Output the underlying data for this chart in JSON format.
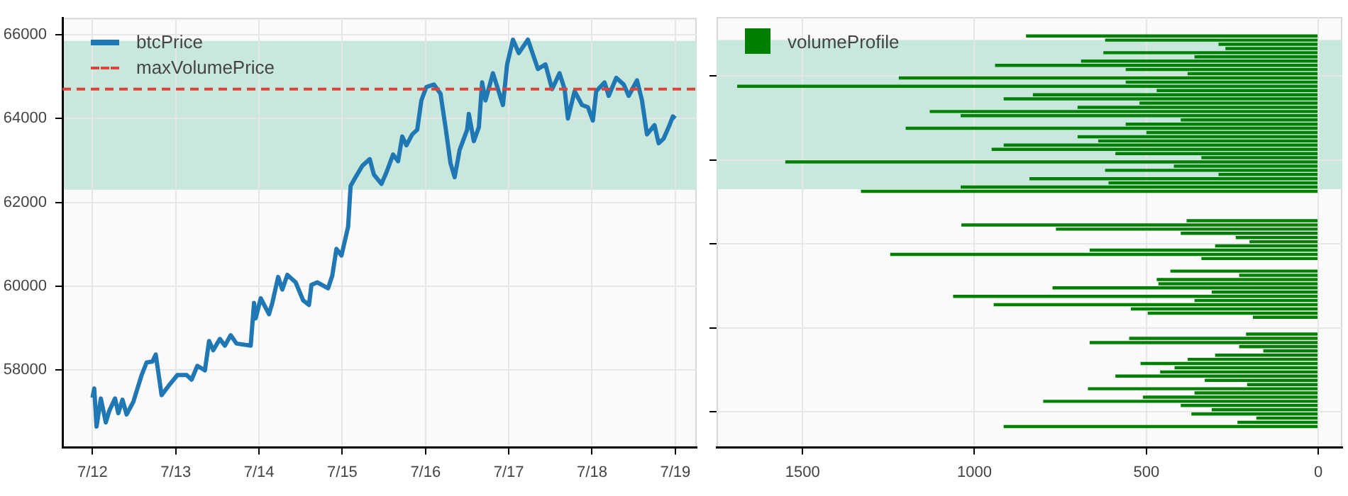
{
  "chart_data": [
    {
      "type": "line",
      "legend": "top left",
      "grid": true,
      "xlim": [
        "--07-11T15:20",
        "--07-19T06:10"
      ],
      "xticks": [
        {
          "value": "--07-12",
          "label": "7/12"
        },
        {
          "value": "--07-13",
          "label": "7/13"
        },
        {
          "value": "--07-14",
          "label": "7/14"
        },
        {
          "value": "--07-15",
          "label": "7/15"
        },
        {
          "value": "--07-16",
          "label": "7/16"
        },
        {
          "value": "--07-17",
          "label": "7/17"
        },
        {
          "value": "--07-18",
          "label": "7/18"
        },
        {
          "value": "--07-19",
          "label": "7/19"
        }
      ],
      "ylim": [
        56150,
        66400
      ],
      "yticks": [
        58000,
        60000,
        62000,
        64000,
        66000
      ],
      "bands": [
        {
          "axis": "y",
          "from": 62300,
          "to": 65850,
          "color": "#c8e8dd"
        }
      ],
      "ref_lines": [
        {
          "axis": "y",
          "value": 64700,
          "label": "maxVolumePrice",
          "color": "#d9453b",
          "line_style": "dashed"
        }
      ],
      "x": [
        "--07-12T00:00",
        "--07-12T00:30",
        "--07-12T01:10",
        "--07-12T02:24",
        "--07-12T03:50",
        "--07-12T04:48",
        "--07-12T06:30",
        "--07-12T07:26",
        "--07-12T08:38",
        "--07-12T09:50",
        "--07-12T11:46",
        "--07-12T12:58",
        "--07-12T14:10",
        "--07-12T15:36",
        "--07-12T17:17",
        "--07-12T18:14",
        "--07-12T19:55",
        "--07-12T21:50",
        "--07-13T00:29",
        "--07-13T03:07",
        "--07-13T04:34",
        "--07-13T06:14",
        "--07-13T08:24",
        "--07-13T09:36",
        "--07-13T10:48",
        "--07-13T12:43",
        "--07-13T14:10",
        "--07-13T15:50",
        "--07-13T17:31",
        "--07-13T21:36",
        "--07-13T22:34",
        "--07-13T23:02",
        "--07-14T00:29",
        "--07-14T02:53",
        "--07-14T03:50",
        "--07-14T05:31",
        "--07-14T06:43",
        "--07-14T08:10",
        "--07-14T10:34",
        "--07-14T12:43",
        "--07-14T14:24",
        "--07-14T15:07",
        "--07-14T16:48",
        "--07-14T19:55",
        "--07-14T21:07",
        "--07-14T22:19",
        "--07-14T23:46",
        "--07-15T01:41",
        "--07-15T02:24",
        "--07-15T03:50",
        "--07-15T05:46",
        "--07-15T07:55",
        "--07-15T09:07",
        "--07-15T11:17",
        "--07-15T12:43",
        "--07-15T14:38",
        "--07-15T16:05",
        "--07-15T17:17",
        "--07-15T18:29",
        "--07-15T20:10",
        "--07-15T21:36",
        "--07-15T22:48",
        "--07-16T00:14",
        "--07-16T02:24",
        "--07-16T04:19",
        "--07-16T05:46",
        "--07-16T07:12",
        "--07-16T08:24",
        "--07-16T09:50",
        "--07-16T12:00",
        "--07-16T12:29",
        "--07-16T13:55",
        "--07-16T15:22",
        "--07-16T16:19",
        "--07-16T17:17",
        "--07-16T19:26",
        "--07-16T20:53",
        "--07-16T22:19",
        "--07-16T23:31",
        "--07-17T01:12",
        "--07-17T02:53",
        "--07-17T05:31",
        "--07-17T08:24",
        "--07-17T10:34",
        "--07-17T12:29",
        "--07-17T14:38",
        "--07-17T16:05",
        "--07-17T17:02",
        "--07-17T18:58",
        "--07-17T21:07",
        "--07-17T22:48",
        "--07-18T00:14",
        "--07-18T01:12",
        "--07-18T03:36",
        "--07-18T04:48",
        "--07-18T06:58",
        "--07-18T09:07",
        "--07-18T10:34",
        "--07-18T12:58",
        "--07-18T14:24",
        "--07-18T15:50",
        "--07-18T18:00",
        "--07-18T19:12",
        "--07-18T20:38",
        "--07-18T22:19",
        "--07-18T23:17",
        "--07-19T00:00"
      ],
      "series": [
        {
          "name": "btcPrice",
          "color": "#1f77b4",
          "values": [
            57340,
            57560,
            56650,
            57320,
            56750,
            57020,
            57320,
            56970,
            57290,
            56940,
            57240,
            57560,
            57880,
            58180,
            58200,
            58370,
            57400,
            57610,
            57880,
            57880,
            57770,
            58100,
            57990,
            58690,
            58470,
            58740,
            58580,
            58830,
            58630,
            58580,
            59600,
            59230,
            59710,
            59330,
            59600,
            60220,
            59920,
            60270,
            60090,
            59660,
            59550,
            60030,
            60090,
            59950,
            60250,
            60890,
            60730,
            61420,
            62390,
            62600,
            62870,
            63030,
            62660,
            62440,
            62710,
            63140,
            62980,
            63570,
            63360,
            63620,
            63730,
            64430,
            64750,
            64810,
            64590,
            63790,
            62930,
            62600,
            63250,
            63730,
            64110,
            63460,
            63790,
            64860,
            64430,
            65080,
            64700,
            64320,
            65290,
            65880,
            65560,
            65880,
            65180,
            65290,
            64700,
            65080,
            64700,
            64000,
            64650,
            64320,
            64270,
            63950,
            64650,
            64860,
            64540,
            64970,
            64810,
            64540,
            64910,
            64430,
            63620,
            63840,
            63410,
            63520,
            63840,
            64050,
            64000
          ]
        }
      ]
    },
    {
      "type": "histogram",
      "orientation": "horizontal",
      "legend": "top left",
      "grid": true,
      "tick_labels": "x",
      "xlim": [
        1750,
        -70
      ],
      "xticks": [
        0,
        500,
        1000,
        1500
      ],
      "ylim": [
        56150,
        66400
      ],
      "yticks": [
        58000,
        60000,
        62000,
        64000,
        66000
      ],
      "bands": [
        {
          "axis": "y",
          "from": 62300,
          "to": 65850,
          "color": "#c8e8dd"
        }
      ],
      "bins": [
        56600,
        56700,
        56800,
        56900,
        57000,
        57100,
        57200,
        57300,
        57400,
        57500,
        57600,
        57700,
        57800,
        57900,
        58000,
        58100,
        58200,
        58300,
        58400,
        58500,
        58600,
        58700,
        58800,
        58900,
        59000,
        59100,
        59200,
        59300,
        59400,
        59500,
        59600,
        59700,
        59800,
        59900,
        60000,
        60100,
        60200,
        60300,
        60400,
        60500,
        60600,
        60700,
        60800,
        60900,
        61000,
        61100,
        61200,
        61300,
        61400,
        61500,
        61600,
        61700,
        61800,
        61900,
        62000,
        62100,
        62200,
        62300,
        62400,
        62500,
        62600,
        62700,
        62800,
        62900,
        63000,
        63100,
        63200,
        63300,
        63400,
        63500,
        63600,
        63700,
        63800,
        63900,
        64000,
        64100,
        64200,
        64300,
        64400,
        64500,
        64600,
        64700,
        64800,
        64900,
        65000,
        65100,
        65200,
        65300,
        65400,
        65500,
        65600,
        65700,
        65800,
        65900,
        66000
      ],
      "series": [
        {
          "name": "volumeProfile",
          "color": "#008000",
          "values": [
            915,
            235,
            180,
            369,
            310,
            400,
            800,
            510,
            360,
            670,
            207,
            330,
            590,
            460,
            418,
            517,
            380,
            300,
            160,
            230,
            665,
            550,
            210,
            0,
            0,
            0,
            190,
            496,
            545,
            944,
            360,
            1062,
            310,
            773,
            465,
            470,
            230,
            430,
            0,
            0,
            340,
            1245,
            665,
            300,
            200,
            240,
            400,
            763,
            1038,
            383,
            0,
            0,
            0,
            0,
            0,
            0,
            1330,
            1040,
            610,
            840,
            290,
            620,
            420,
            1550,
            340,
            590,
            950,
            915,
            640,
            700,
            500,
            1200,
            560,
            400,
            1040,
            1130,
            700,
            520,
            915,
            830,
            470,
            1690,
            560,
            1220,
            380,
            560,
            940,
            690,
            360,
            625,
            270,
            290,
            620,
            850
          ]
        }
      ]
    }
  ]
}
